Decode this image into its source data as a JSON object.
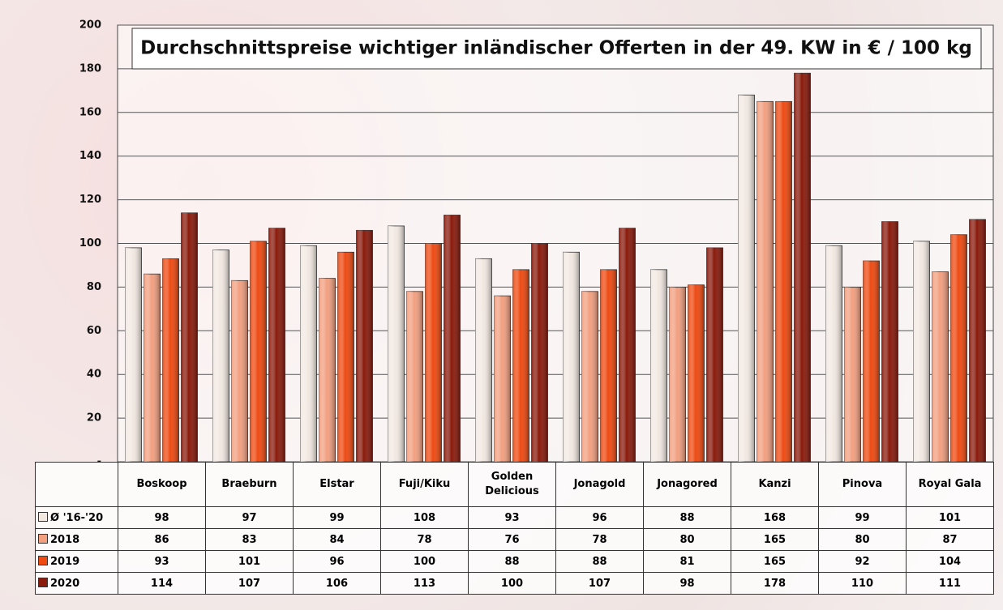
{
  "chart_data": {
    "type": "bar",
    "title": "Durchschnittspreise wichtiger inländischer Offerten in der 49. KW in € / 100 kg",
    "categories": [
      "Boskoop",
      "Braeburn",
      "Elstar",
      "Fuji/Kiku",
      "Golden Delicious",
      "Jonagold",
      "Jonagored",
      "Kanzi",
      "Pinova",
      "Royal Gala"
    ],
    "series": [
      {
        "name": "Ø '16-'20",
        "color": "#f2e8e2",
        "values": [
          98,
          97,
          99,
          108,
          93,
          96,
          88,
          168,
          99,
          101
        ]
      },
      {
        "name": "2018",
        "color": "#f2a080",
        "values": [
          86,
          83,
          84,
          78,
          76,
          78,
          80,
          165,
          80,
          87
        ]
      },
      {
        "name": "2019",
        "color": "#ee4a12",
        "values": [
          93,
          101,
          96,
          100,
          88,
          88,
          81,
          165,
          92,
          104
        ]
      },
      {
        "name": "2020",
        "color": "#8a1a0c",
        "values": [
          114,
          107,
          106,
          113,
          100,
          107,
          98,
          178,
          110,
          111
        ]
      }
    ],
    "ylim": [
      0,
      200
    ],
    "yticks": [
      {
        "value": 0,
        "label": "-"
      },
      20,
      40,
      60,
      80,
      100,
      120,
      140,
      160,
      180,
      200
    ],
    "grid": true
  }
}
